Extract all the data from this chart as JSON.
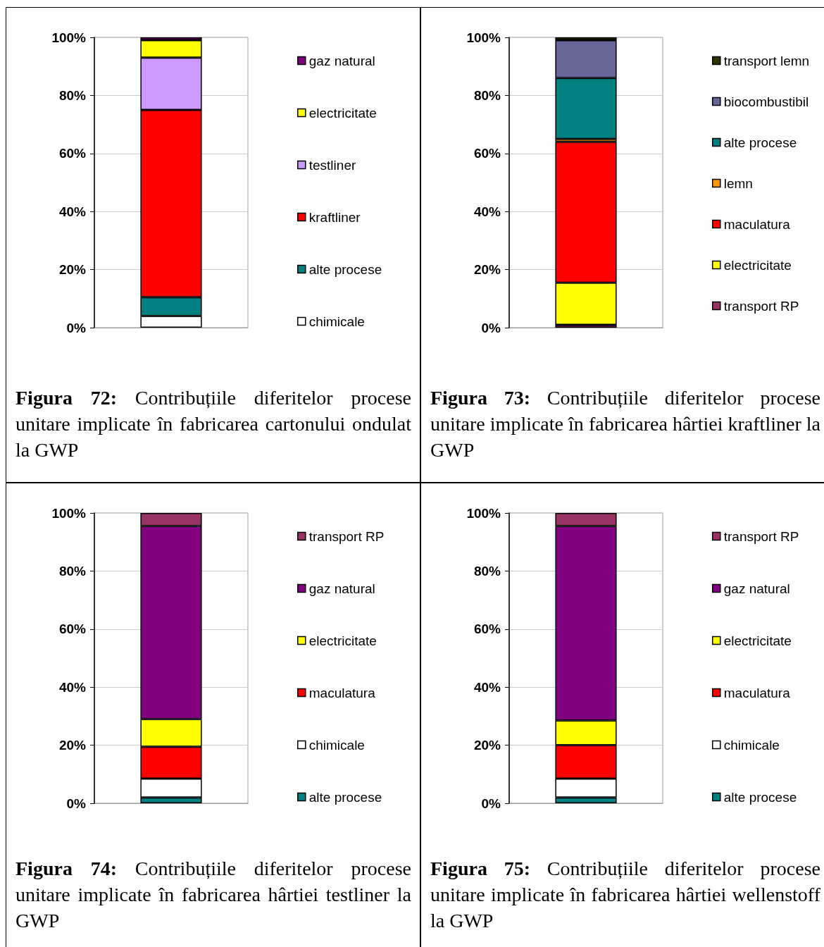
{
  "chart_data": [
    {
      "type": "bar",
      "stacked": true,
      "title": "Figura 72: Contribuțiile diferitelor procese unitare implicate în fabricarea cartonului ondulat la GWP",
      "categories": [
        null
      ],
      "ylim": [
        0,
        100
      ],
      "yticks": [
        {
          "value": 0,
          "label": "0%"
        },
        {
          "value": 20,
          "label": "20%"
        },
        {
          "value": 40,
          "label": "40%"
        },
        {
          "value": 60,
          "label": "60%"
        },
        {
          "value": 80,
          "label": "80%"
        },
        {
          "value": 100,
          "label": "100%"
        }
      ],
      "grid": "y",
      "legend": "right",
      "series": [
        {
          "name": "chimicale",
          "color": "#ffffff",
          "values": [
            4
          ]
        },
        {
          "name": "alte procese",
          "color": "#008080",
          "values": [
            6.5
          ]
        },
        {
          "name": "kraftliner",
          "color": "#ff0000",
          "values": [
            64.5
          ]
        },
        {
          "name": "testliner",
          "color": "#cc99ff",
          "values": [
            18
          ]
        },
        {
          "name": "electricitate",
          "color": "#ffff00",
          "values": [
            6
          ]
        },
        {
          "name": "gaz natural",
          "color": "#800080",
          "values": [
            1
          ]
        }
      ]
    },
    {
      "type": "bar",
      "stacked": true,
      "title": "Figura 73: Contribuțiile diferitelor procese unitare implicate în fabricarea hârtiei kraftliner la GWP",
      "categories": [
        null
      ],
      "ylim": [
        0,
        100
      ],
      "yticks": [
        {
          "value": 0,
          "label": "0%"
        },
        {
          "value": 20,
          "label": "20%"
        },
        {
          "value": 40,
          "label": "40%"
        },
        {
          "value": 60,
          "label": "60%"
        },
        {
          "value": 80,
          "label": "80%"
        },
        {
          "value": 100,
          "label": "100%"
        }
      ],
      "grid": "y",
      "legend": "right",
      "series": [
        {
          "name": "transport RP",
          "color": "#993366",
          "values": [
            1
          ]
        },
        {
          "name": "electricitate",
          "color": "#ffff00",
          "values": [
            14.5
          ]
        },
        {
          "name": "maculatura",
          "color": "#ff0000",
          "values": [
            48.5
          ]
        },
        {
          "name": "lemn",
          "color": "#ff9900",
          "values": [
            1
          ]
        },
        {
          "name": "alte procese",
          "color": "#008080",
          "values": [
            21
          ]
        },
        {
          "name": "biocombustibil",
          "color": "#666699",
          "values": [
            13
          ]
        },
        {
          "name": "transport lemn",
          "color": "#333300",
          "values": [
            1
          ]
        }
      ]
    },
    {
      "type": "bar",
      "stacked": true,
      "title": "Figura 74: Contribuțiile diferitelor procese unitare implicate în fabricarea hârtiei testliner la GWP",
      "categories": [
        null
      ],
      "ylim": [
        0,
        100
      ],
      "yticks": [
        {
          "value": 0,
          "label": "0%"
        },
        {
          "value": 20,
          "label": "20%"
        },
        {
          "value": 40,
          "label": "40%"
        },
        {
          "value": 60,
          "label": "60%"
        },
        {
          "value": 80,
          "label": "80%"
        },
        {
          "value": 100,
          "label": "100%"
        }
      ],
      "grid": "y",
      "legend": "right",
      "series": [
        {
          "name": "alte procese",
          "color": "#008080",
          "values": [
            2
          ]
        },
        {
          "name": "chimicale",
          "color": "#ffffff",
          "values": [
            6.5
          ]
        },
        {
          "name": "maculatura",
          "color": "#ff0000",
          "values": [
            11
          ]
        },
        {
          "name": "electricitate",
          "color": "#ffff00",
          "values": [
            9.5
          ]
        },
        {
          "name": "gaz natural",
          "color": "#800080",
          "values": [
            66.5
          ]
        },
        {
          "name": "transport RP",
          "color": "#993366",
          "values": [
            4.5
          ]
        }
      ]
    },
    {
      "type": "bar",
      "stacked": true,
      "title": "Figura 75: Contribuțiile diferitelor procese unitare implicate în fabricarea hârtiei wellenstoff la GWP",
      "categories": [
        null
      ],
      "ylim": [
        0,
        100
      ],
      "yticks": [
        {
          "value": 0,
          "label": "0%"
        },
        {
          "value": 20,
          "label": "20%"
        },
        {
          "value": 40,
          "label": "40%"
        },
        {
          "value": 60,
          "label": "60%"
        },
        {
          "value": 80,
          "label": "80%"
        },
        {
          "value": 100,
          "label": "100%"
        }
      ],
      "grid": "y",
      "legend": "right",
      "series": [
        {
          "name": "alte procese",
          "color": "#008080",
          "values": [
            2
          ]
        },
        {
          "name": "chimicale",
          "color": "#ffffff",
          "values": [
            6.5
          ]
        },
        {
          "name": "maculatura",
          "color": "#ff0000",
          "values": [
            11.5
          ]
        },
        {
          "name": "electricitate",
          "color": "#ffff00",
          "values": [
            8.5
          ]
        },
        {
          "name": "gaz natural",
          "color": "#800080",
          "values": [
            67
          ]
        },
        {
          "name": "transport RP",
          "color": "#993366",
          "values": [
            4.5
          ]
        }
      ]
    }
  ]
}
